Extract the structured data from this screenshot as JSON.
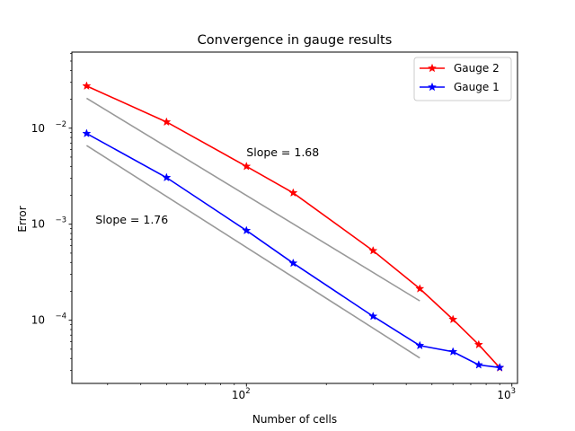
{
  "chart_data": {
    "type": "line",
    "title": "Convergence in gauge results",
    "xlabel": "Number of cells",
    "ylabel": "Error",
    "xscale": "log",
    "yscale": "log",
    "xlim": [
      22,
      1050
    ],
    "ylim": [
      2.2e-05,
      0.062
    ],
    "xticks": [
      {
        "value": 100,
        "base": "10",
        "exp": "2"
      },
      {
        "value": 1000,
        "base": "10",
        "exp": "3"
      }
    ],
    "yticks": [
      {
        "value": 0.0001,
        "base": "10",
        "exp": "−4"
      },
      {
        "value": 0.001,
        "base": "10",
        "exp": "−3"
      },
      {
        "value": 0.01,
        "base": "10",
        "exp": "−2"
      }
    ],
    "legend_position": "top-right",
    "series": [
      {
        "name": "Gauge 2",
        "color": "#ff0000",
        "marker": "star",
        "x": [
          25,
          50,
          100,
          150,
          300,
          450,
          600,
          750,
          900
        ],
        "y": [
          0.0275,
          0.0116,
          0.004,
          0.00212,
          0.00053,
          0.000213,
          0.000102,
          5.57e-05,
          3.2e-05
        ]
      },
      {
        "name": "Gauge 1",
        "color": "#0000ff",
        "marker": "star",
        "x": [
          25,
          50,
          100,
          150,
          300,
          450,
          600,
          750,
          900
        ],
        "y": [
          0.0088,
          0.00306,
          0.00086,
          0.000393,
          0.00011,
          5.45e-05,
          4.7e-05,
          3.43e-05,
          3.22e-05
        ]
      }
    ],
    "reference_lines": [
      {
        "name": "slope-line-1.68",
        "color": "#999999",
        "x": [
          25,
          450
        ],
        "y": [
          0.0205,
          0.000159
        ]
      },
      {
        "name": "slope-line-1.76",
        "color": "#999999",
        "x": [
          25,
          450
        ],
        "y": [
          0.0066,
          4.05e-05
        ]
      }
    ],
    "annotations": [
      {
        "name": "slope-label-1.68",
        "text": "Slope = 1.68",
        "x": 100,
        "y": 0.0051
      },
      {
        "name": "slope-label-1.76",
        "text": "Slope = 1.76",
        "x": 27,
        "y": 0.00102
      }
    ]
  }
}
